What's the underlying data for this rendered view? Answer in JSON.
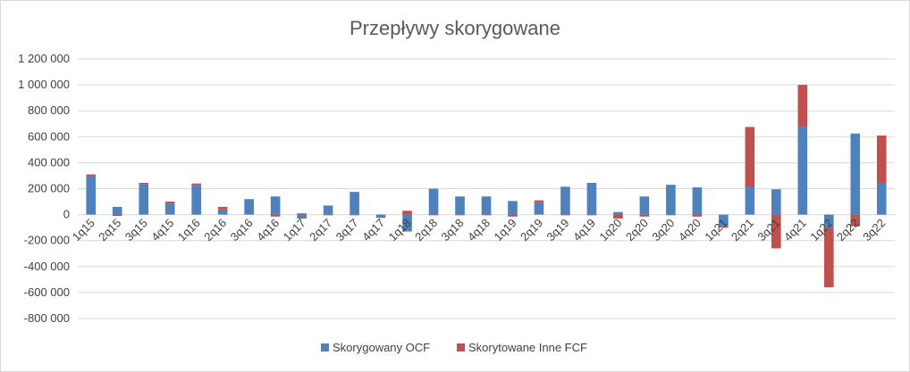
{
  "chart_data": {
    "type": "bar",
    "stacked": true,
    "title": "Przepływy skorygowane",
    "categories": [
      "1q15",
      "2q15",
      "3q15",
      "4q15",
      "1q16",
      "2q16",
      "3q16",
      "4q16",
      "1q17",
      "2q17",
      "3q17",
      "4q17",
      "1q18",
      "2q18",
      "3q18",
      "4q18",
      "1q19",
      "2q19",
      "3q19",
      "4q19",
      "1q20",
      "2q20",
      "3q20",
      "4q20",
      "1q21",
      "2q21",
      "3q21",
      "4q21",
      "1q22",
      "2q22",
      "3q22"
    ],
    "series": [
      {
        "name": "Skorygowany OCF",
        "color": "#4f81bd",
        "values": [
          300000,
          60000,
          235000,
          85000,
          230000,
          40000,
          115000,
          140000,
          -30000,
          70000,
          175000,
          -25000,
          -130000,
          200000,
          140000,
          140000,
          105000,
          95000,
          215000,
          245000,
          20000,
          140000,
          230000,
          210000,
          -90000,
          210000,
          195000,
          675000,
          -100000,
          625000,
          245000
        ]
      },
      {
        "name": "Skorytowane Inne FCF",
        "color": "#c0504d",
        "values": [
          10000,
          -10000,
          10000,
          15000,
          10000,
          20000,
          5000,
          -15000,
          10000,
          -5000,
          -5000,
          0,
          30000,
          -5000,
          -5000,
          -5000,
          -15000,
          15000,
          -5000,
          -5000,
          -30000,
          -15000,
          -5000,
          -15000,
          -10000,
          465000,
          -260000,
          325000,
          -460000,
          -90000,
          365000
        ]
      }
    ],
    "yticks": [
      "1 200 000",
      "1 000 000",
      "800 000",
      "600 000",
      "400 000",
      "200 000",
      "0",
      "-200 000",
      "-400 000",
      "-600 000",
      "-800 000"
    ],
    "ylim": [
      -800000,
      1200000
    ],
    "grid": true,
    "legend_position": "bottom"
  }
}
